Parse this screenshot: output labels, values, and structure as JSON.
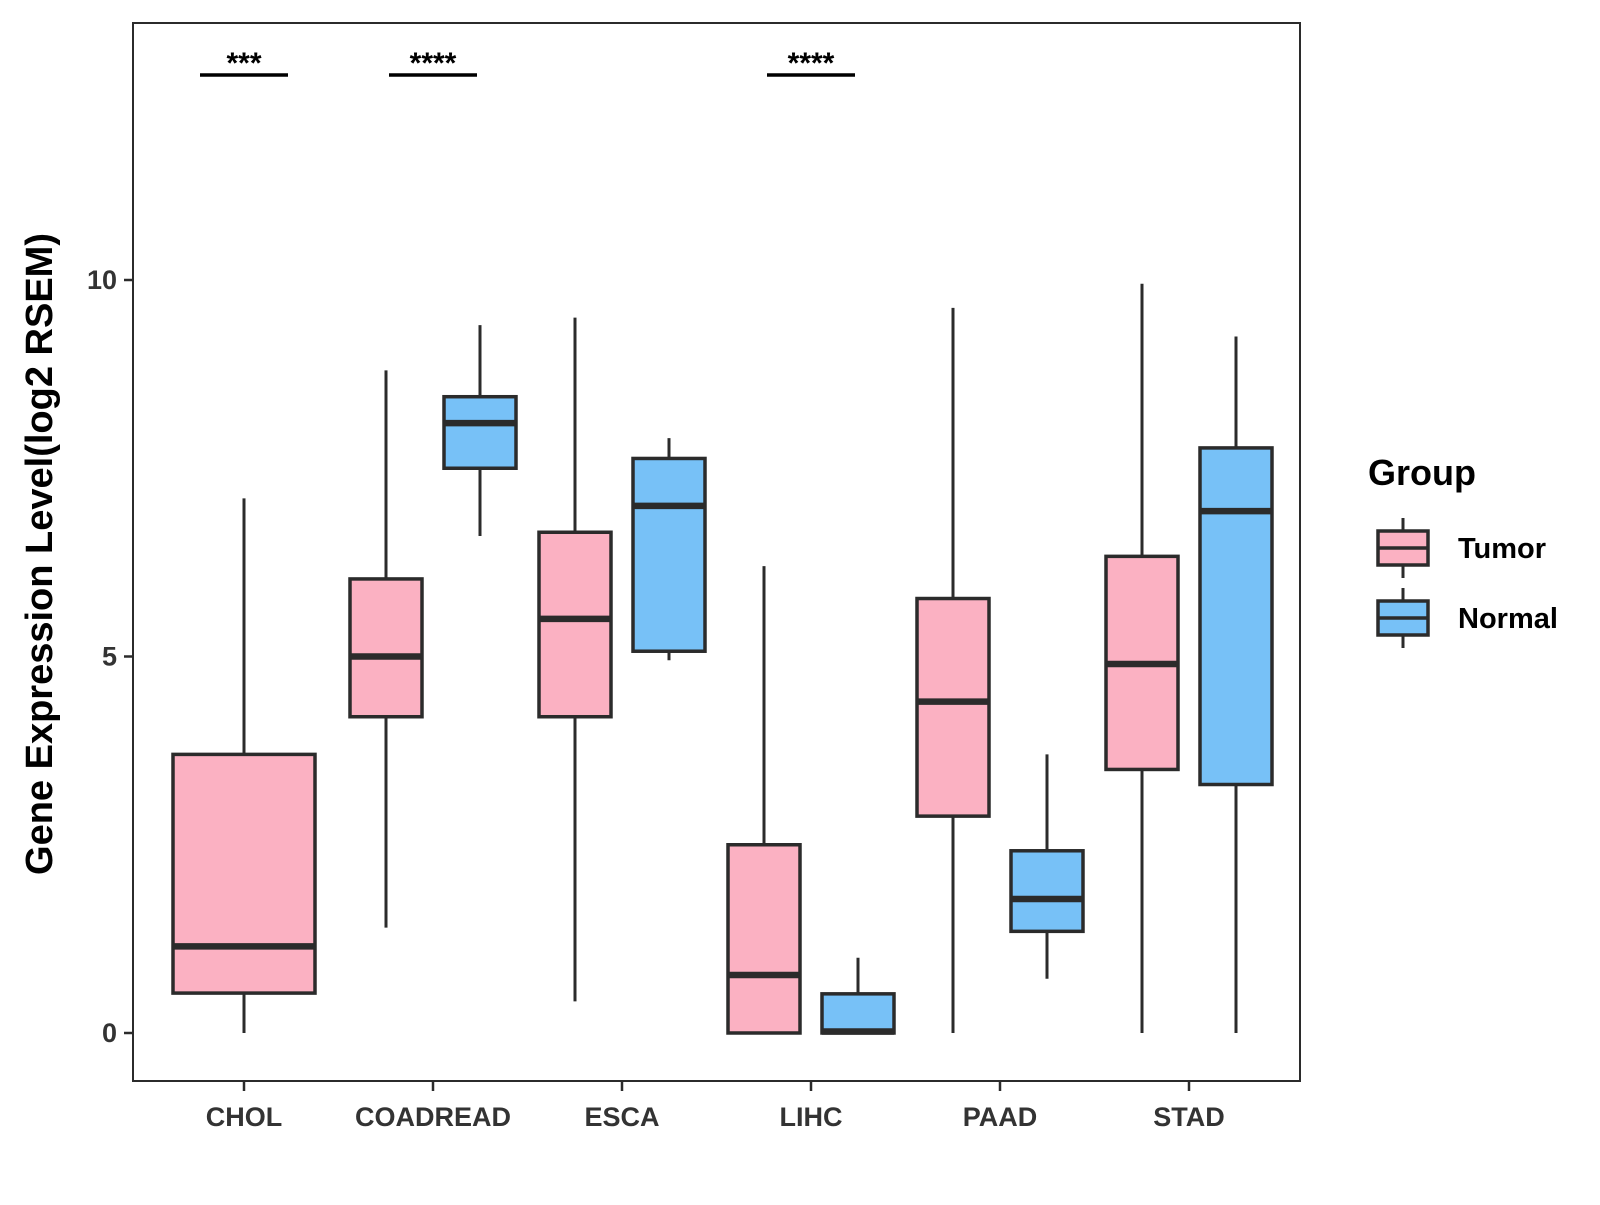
{
  "chart_data": {
    "type": "box",
    "ylabel": "Gene Expression Level(log2 RSEM)",
    "xlabel": "",
    "ylim": [
      -0.63,
      13.4
    ],
    "yticks": [
      0,
      5,
      10
    ],
    "grid": false,
    "categories": [
      "CHOL",
      "COADREAD",
      "ESCA",
      "LIHC",
      "PAAD",
      "STAD"
    ],
    "series": [
      {
        "name": "Tumor",
        "color": "#fbb1c2",
        "boxes": [
          {
            "category": "CHOL",
            "min": 0.0,
            "q1": 0.53,
            "median": 1.15,
            "q3": 3.7,
            "max": 7.1
          },
          {
            "category": "COADREAD",
            "min": 1.4,
            "q1": 4.2,
            "median": 5.0,
            "q3": 6.03,
            "max": 8.8
          },
          {
            "category": "ESCA",
            "min": 0.42,
            "q1": 4.2,
            "median": 5.5,
            "q3": 6.65,
            "max": 9.5
          },
          {
            "category": "LIHC",
            "min": 0.0,
            "q1": 0.0,
            "median": 0.77,
            "q3": 2.5,
            "max": 6.2
          },
          {
            "category": "PAAD",
            "min": 0.0,
            "q1": 2.88,
            "median": 4.4,
            "q3": 5.77,
            "max": 9.63
          },
          {
            "category": "STAD",
            "min": 0.0,
            "q1": 3.5,
            "median": 4.9,
            "q3": 6.33,
            "max": 9.95
          }
        ]
      },
      {
        "name": "Normal",
        "color": "#77c1f7",
        "boxes": [
          {
            "category": "CHOL",
            "present": false
          },
          {
            "category": "COADREAD",
            "min": 6.6,
            "q1": 7.5,
            "median": 8.1,
            "q3": 8.45,
            "max": 9.4
          },
          {
            "category": "ESCA",
            "min": 4.95,
            "q1": 5.07,
            "median": 7.0,
            "q3": 7.63,
            "max": 7.9
          },
          {
            "category": "LIHC",
            "min": 0.0,
            "q1": 0.0,
            "median": 0.02,
            "q3": 0.52,
            "max": 1.0
          },
          {
            "category": "PAAD",
            "min": 0.72,
            "q1": 1.35,
            "median": 1.78,
            "q3": 2.42,
            "max": 3.7
          },
          {
            "category": "STAD",
            "min": 0.0,
            "q1": 3.3,
            "median": 6.93,
            "q3": 7.77,
            "max": 9.25
          }
        ]
      }
    ],
    "significance": [
      {
        "category": "CHOL",
        "label": "***",
        "y": 12.75
      },
      {
        "category": "COADREAD",
        "label": "****",
        "y": 12.75
      },
      {
        "category": "LIHC",
        "label": "****",
        "y": 12.75
      }
    ],
    "legend": {
      "title": "Group",
      "position": "right",
      "items": [
        {
          "label": "Tumor",
          "color": "#fbb1c2"
        },
        {
          "label": "Normal",
          "color": "#77c1f7"
        }
      ]
    }
  }
}
